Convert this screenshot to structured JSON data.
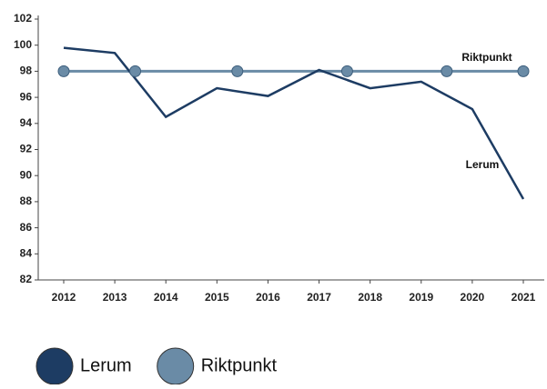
{
  "chart_data": {
    "type": "line",
    "categories": [
      "2012",
      "2013",
      "2014",
      "2015",
      "2016",
      "2017",
      "2018",
      "2019",
      "2020",
      "2021"
    ],
    "series": [
      {
        "name": "Lerum",
        "color": "#1d3c63",
        "values": [
          99.8,
          99.4,
          94.5,
          96.7,
          96.1,
          98.1,
          96.7,
          97.2,
          95.1,
          88.2
        ]
      },
      {
        "name": "Riktpunkt",
        "color": "#6a8ba6",
        "values": [
          98,
          98,
          98,
          98,
          98,
          98,
          98,
          98,
          98,
          98
        ]
      }
    ],
    "ylim": [
      82,
      102
    ],
    "yticks": [
      82,
      84,
      86,
      88,
      90,
      92,
      94,
      96,
      98,
      100,
      102
    ],
    "legend": "bottom"
  }
}
